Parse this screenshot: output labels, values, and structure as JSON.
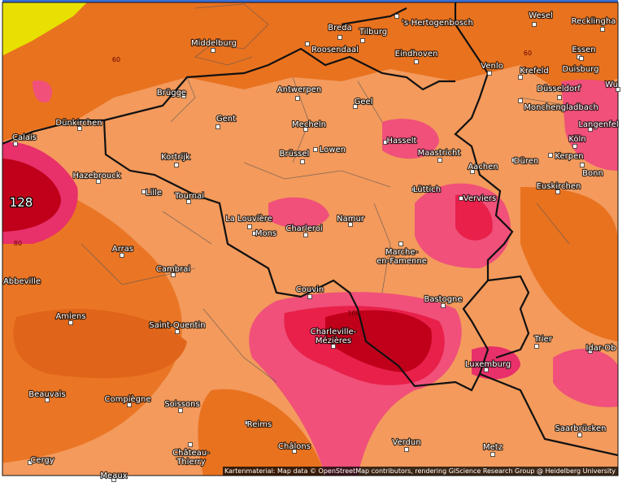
{
  "map": {
    "cities": [
      {
        "lines": [
          "Breda"
        ]
      },
      {
        "lines": [
          "Tilburg"
        ]
      },
      {
        "lines": [
          "'s-Hertogenbosch"
        ]
      },
      {
        "lines": [
          "Wesel"
        ]
      },
      {
        "lines": [
          "Recklingha"
        ]
      },
      {
        "lines": [
          "Middelburg"
        ]
      },
      {
        "lines": [
          "Roosendaal"
        ]
      },
      {
        "lines": [
          "Eindhoven"
        ]
      },
      {
        "lines": [
          "Essen"
        ]
      },
      {
        "lines": [
          "Venlo"
        ]
      },
      {
        "lines": [
          "Krefeld"
        ]
      },
      {
        "lines": [
          "Duisburg"
        ]
      },
      {
        "lines": [
          "Wu"
        ]
      },
      {
        "lines": [
          "Düsseldorf"
        ]
      },
      {
        "lines": [
          "Antwerpen"
        ]
      },
      {
        "lines": [
          "Brügge"
        ]
      },
      {
        "lines": [
          "Geel"
        ]
      },
      {
        "lines": [
          "Monchengladbach"
        ]
      },
      {
        "lines": [
          "Langenfel"
        ]
      },
      {
        "lines": [
          "Gent"
        ]
      },
      {
        "lines": [
          "Mecheln"
        ]
      },
      {
        "lines": [
          "Dünkirchen"
        ]
      },
      {
        "lines": [
          "Calais"
        ]
      },
      {
        "lines": [
          "Hasselt"
        ]
      },
      {
        "lines": [
          "Köln"
        ]
      },
      {
        "lines": [
          "Lowen"
        ]
      },
      {
        "lines": [
          "Maastricht"
        ]
      },
      {
        "lines": [
          "Brüssel"
        ]
      },
      {
        "lines": [
          "Düren"
        ]
      },
      {
        "lines": [
          "Kerpen"
        ]
      },
      {
        "lines": [
          "Kortrijk"
        ]
      },
      {
        "lines": [
          "Hazebrouck"
        ]
      },
      {
        "lines": [
          "Aachen"
        ]
      },
      {
        "lines": [
          "Bonn"
        ]
      },
      {
        "lines": [
          "Euskirchen"
        ]
      },
      {
        "lines": [
          "Lüttich"
        ]
      },
      {
        "lines": [
          "Lille"
        ]
      },
      {
        "lines": [
          "Tournai"
        ]
      },
      {
        "lines": [
          "Verviers"
        ]
      },
      {
        "lines": [
          "La Louvière"
        ]
      },
      {
        "lines": [
          "Namur"
        ]
      },
      {
        "lines": [
          "Charleroi"
        ]
      },
      {
        "lines": [
          "Mons"
        ]
      },
      {
        "lines": [
          "Arras"
        ]
      },
      {
        "lines": [
          "Marche-",
          "en-Famenne"
        ]
      },
      {
        "lines": [
          "Cambrai"
        ]
      },
      {
        "lines": [
          "Abbeville"
        ]
      },
      {
        "lines": [
          "Couvin"
        ]
      },
      {
        "lines": [
          "Bastogne"
        ]
      },
      {
        "lines": [
          "Amiens"
        ]
      },
      {
        "lines": [
          "Saint-Quentin"
        ]
      },
      {
        "lines": [
          "Charleville-",
          "Mézières"
        ]
      },
      {
        "lines": [
          "Trier"
        ]
      },
      {
        "lines": [
          "Idar-Ob"
        ]
      },
      {
        "lines": [
          "Luxemburg"
        ]
      },
      {
        "lines": [
          "Beauvais"
        ]
      },
      {
        "lines": [
          "Compiègne"
        ]
      },
      {
        "lines": [
          "Soissons"
        ]
      },
      {
        "lines": [
          "Saarbrücken"
        ]
      },
      {
        "lines": [
          "Reims"
        ]
      },
      {
        "lines": [
          "Verdun"
        ]
      },
      {
        "lines": [
          "Metz"
        ]
      },
      {
        "lines": [
          "Château-",
          "Thierry"
        ]
      },
      {
        "lines": [
          "Cergy"
        ]
      },
      {
        "lines": [
          "Châlons"
        ]
      },
      {
        "lines": [
          "Meaux"
        ]
      }
    ],
    "contour_labels": [
      "60",
      "60",
      "80",
      "100"
    ],
    "max_value": "128",
    "attribution": "Kartenmaterial: Map data © OpenStreetMap contributors, rendering GIScience Research Group @ Heidelberg University"
  }
}
